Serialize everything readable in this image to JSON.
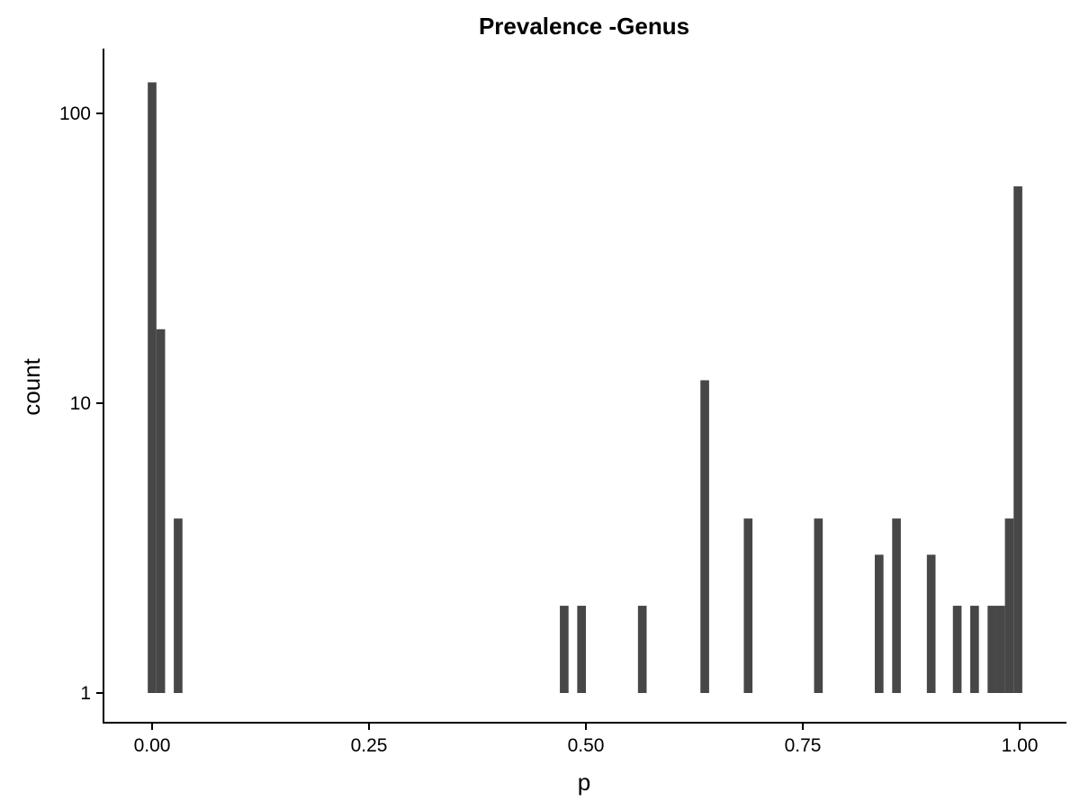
{
  "chart_data": {
    "type": "bar",
    "title": "Prevalence -Genus",
    "xlabel": "p",
    "ylabel": "count",
    "xlim": [
      -0.05,
      1.05
    ],
    "ylim": [
      1,
      160
    ],
    "y_scale": "log10",
    "grid": false,
    "bar_color": "#474747",
    "x_ticks": [
      {
        "value": 0.0,
        "label": "0.00"
      },
      {
        "value": 0.25,
        "label": "0.25"
      },
      {
        "value": 0.5,
        "label": "0.50"
      },
      {
        "value": 0.75,
        "label": "0.75"
      },
      {
        "value": 1.0,
        "label": "1.00"
      }
    ],
    "y_ticks": [
      {
        "value": 1,
        "label": "1"
      },
      {
        "value": 10,
        "label": "10"
      },
      {
        "value": 100,
        "label": "100"
      }
    ],
    "bin_width": 0.01,
    "bins": [
      {
        "x": 0.0,
        "count": 128
      },
      {
        "x": 0.01,
        "count": 18
      },
      {
        "x": 0.03,
        "count": 4
      },
      {
        "x": 0.475,
        "count": 2
      },
      {
        "x": 0.495,
        "count": 2
      },
      {
        "x": 0.565,
        "count": 2
      },
      {
        "x": 0.637,
        "count": 12
      },
      {
        "x": 0.687,
        "count": 4
      },
      {
        "x": 0.768,
        "count": 4
      },
      {
        "x": 0.838,
        "count": 3
      },
      {
        "x": 0.858,
        "count": 4
      },
      {
        "x": 0.898,
        "count": 3
      },
      {
        "x": 0.928,
        "count": 2
      },
      {
        "x": 0.948,
        "count": 2
      },
      {
        "x": 0.968,
        "count": 2
      },
      {
        "x": 0.978,
        "count": 2
      },
      {
        "x": 0.988,
        "count": 4
      },
      {
        "x": 0.998,
        "count": 56
      }
    ]
  }
}
